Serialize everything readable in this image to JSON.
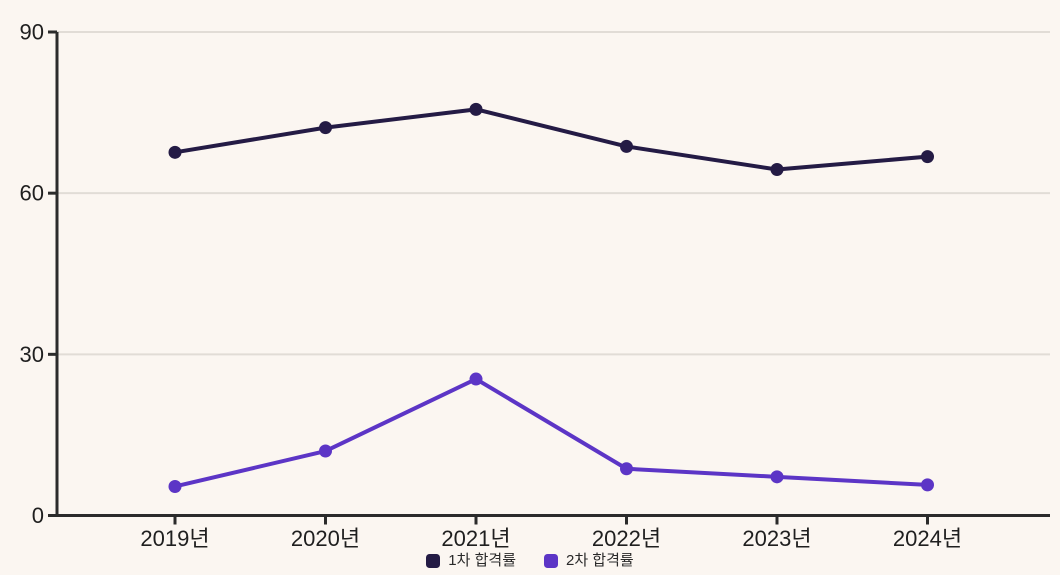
{
  "chart_data": {
    "type": "line",
    "categories": [
      "2019년",
      "2020년",
      "2021년",
      "2022년",
      "2023년",
      "2024년"
    ],
    "series": [
      {
        "name": "1차 합격률",
        "color": "#241b45",
        "values": [
          67.6,
          72.2,
          75.6,
          68.7,
          64.4,
          66.8
        ]
      },
      {
        "name": "2차 합격률",
        "color": "#5c35c6",
        "values": [
          5.4,
          12.0,
          25.4,
          8.7,
          7.2,
          5.7
        ]
      }
    ],
    "title": "",
    "xlabel": "",
    "ylabel": "",
    "ylim": [
      0,
      90
    ],
    "yticks": [
      0,
      30,
      60,
      90
    ],
    "grid": true,
    "legend_position": "bottom-center",
    "colors": {
      "background": "#fbf6f1",
      "gridline": "#e1dcd6",
      "axis": "#2b2b2b",
      "tick_label": "#1f1f1f",
      "legend_text": "#2a2a2a"
    }
  }
}
